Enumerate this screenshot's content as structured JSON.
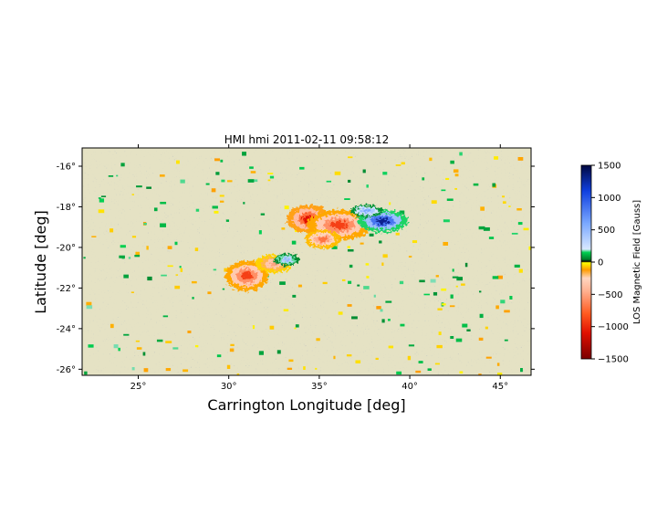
{
  "chart_data": {
    "type": "heatmap",
    "title": "HMI hmi 2011-02-11 09:58:12",
    "xlabel": "Carrington Longitude [deg]",
    "ylabel": "Latitude [deg]",
    "xlim": [
      21.9,
      46.7
    ],
    "ylim": [
      -26.3,
      -15.1
    ],
    "x_ticks": [
      25,
      30,
      35,
      40,
      45
    ],
    "x_tick_labels": [
      "25°",
      "30°",
      "35°",
      "40°",
      "45°"
    ],
    "y_ticks": [
      -16,
      -18,
      -20,
      -22,
      -24,
      -26
    ],
    "y_tick_labels": [
      "-16°",
      "-18°",
      "-20°",
      "-22°",
      "-24°",
      "-26°"
    ],
    "colorbar": {
      "label": "LOS Magnetic Field [Gauss]",
      "range": [
        -1500,
        1500
      ],
      "ticks": [
        1500,
        1000,
        500,
        0,
        -500,
        -1000,
        -1500
      ],
      "tick_labels": [
        "1500",
        "1000",
        "500",
        "0",
        "−500",
        "−1000",
        "−1500"
      ],
      "stops": [
        {
          "v": -1500,
          "color": "#7a0000"
        },
        {
          "v": -1100,
          "color": "#e01000"
        },
        {
          "v": -800,
          "color": "#ff5a20"
        },
        {
          "v": -450,
          "color": "#ffb090"
        },
        {
          "v": -250,
          "color": "#ffd6c0"
        },
        {
          "v": -120,
          "color": "#ff9c00"
        },
        {
          "v": -10,
          "color": "#ffff00"
        },
        {
          "v": 10,
          "color": "#000000"
        },
        {
          "v": 40,
          "color": "#007a2a"
        },
        {
          "v": 150,
          "color": "#00d050"
        },
        {
          "v": 200,
          "color": "#d8e8ff"
        },
        {
          "v": 600,
          "color": "#7aa8ff"
        },
        {
          "v": 1100,
          "color": "#1040e0"
        },
        {
          "v": 1500,
          "color": "#000840"
        }
      ]
    },
    "background_field": "quiet-sun mottled gray/khaki",
    "regions": [
      {
        "polarity": "negative",
        "lon": 34.4,
        "lat": -18.6,
        "rlon": 1.2,
        "rlat": 0.7,
        "peak_gauss": -1100
      },
      {
        "polarity": "negative",
        "lon": 36.1,
        "lat": -18.9,
        "rlon": 1.8,
        "rlat": 0.75,
        "peak_gauss": -900
      },
      {
        "polarity": "negative",
        "lon": 35.2,
        "lat": -19.6,
        "rlon": 1.0,
        "rlat": 0.45,
        "peak_gauss": -700
      },
      {
        "polarity": "negative",
        "lon": 31.0,
        "lat": -21.4,
        "rlon": 1.2,
        "rlat": 0.75,
        "peak_gauss": -900
      },
      {
        "polarity": "negative",
        "lon": 32.5,
        "lat": -20.8,
        "rlon": 1.0,
        "rlat": 0.45,
        "peak_gauss": -500
      },
      {
        "polarity": "positive",
        "lon": 38.5,
        "lat": -18.7,
        "rlon": 1.4,
        "rlat": 0.55,
        "peak_gauss": 1300
      },
      {
        "polarity": "positive",
        "lon": 37.6,
        "lat": -18.2,
        "rlon": 0.9,
        "rlat": 0.3,
        "peak_gauss": 600
      },
      {
        "polarity": "positive",
        "lon": 33.2,
        "lat": -20.6,
        "rlon": 0.7,
        "rlat": 0.3,
        "peak_gauss": 500
      }
    ]
  }
}
